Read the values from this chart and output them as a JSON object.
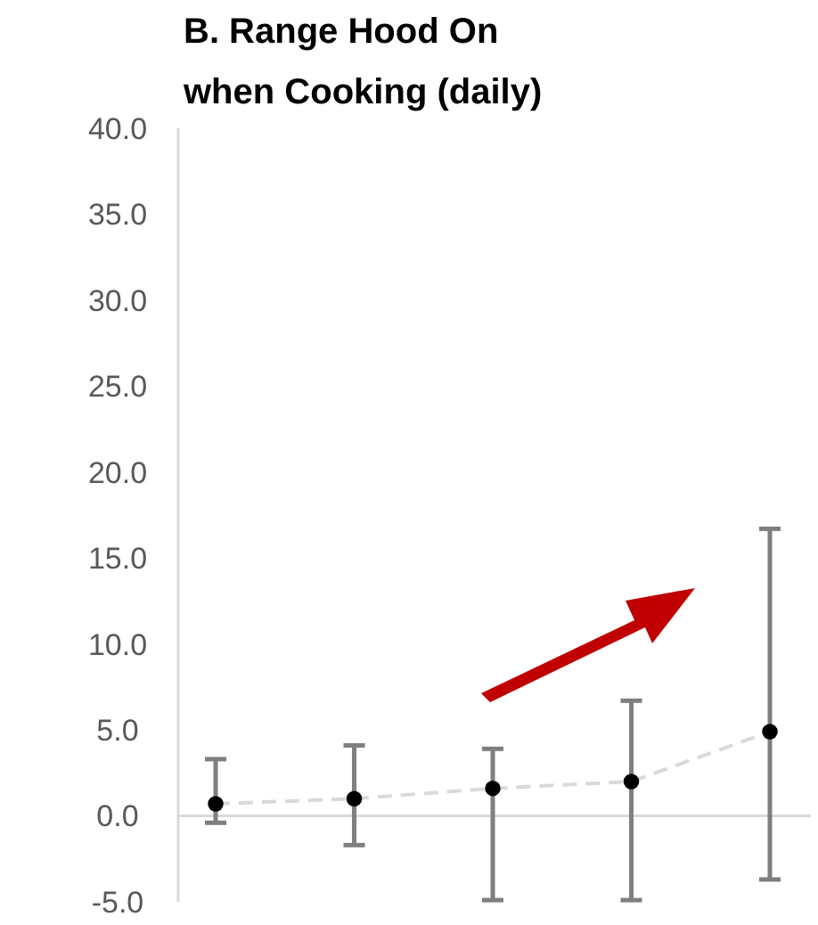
{
  "chart_data": {
    "type": "scatter",
    "title": "B. Range Hood On when Cooking (daily)",
    "categories": [
      null,
      null,
      null,
      null,
      null
    ],
    "ylim": [
      -5,
      40
    ],
    "yticks": [
      {
        "value": -5,
        "label": "-5.0"
      },
      {
        "value": 0,
        "label": "0.0"
      },
      {
        "value": 5,
        "label": "5.0"
      },
      {
        "value": 10,
        "label": "10.0"
      },
      {
        "value": 15,
        "label": "15.0"
      },
      {
        "value": 20,
        "label": "20.0"
      },
      {
        "value": 25,
        "label": "25.0"
      },
      {
        "value": 30,
        "label": "30.0"
      },
      {
        "value": 35,
        "label": "35.0"
      },
      {
        "value": 40,
        "label": "40.0"
      }
    ],
    "series": [
      {
        "type": "line",
        "color": "#d9d9d9",
        "line_style": "dashed",
        "marker": "none",
        "values": [
          0.7,
          1.0,
          1.6,
          2.0,
          4.9
        ]
      },
      {
        "color": "#000000",
        "marker": "circle",
        "values": [
          0.7,
          1.0,
          1.6,
          2.0,
          4.9
        ],
        "errors": [
          [
            -0.4,
            3.3
          ],
          [
            -1.7,
            4.1
          ],
          [
            -4.9,
            3.9
          ],
          [
            -4.9,
            6.7
          ],
          [
            -3.7,
            16.7
          ]
        ]
      }
    ]
  }
}
